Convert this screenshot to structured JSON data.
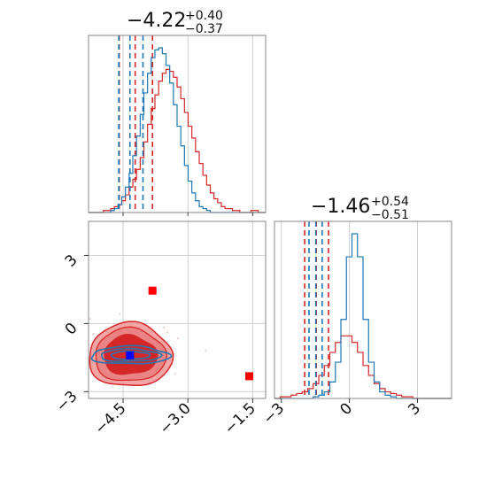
{
  "colors": {
    "red": "#d62728",
    "blue": "#1f77b4",
    "truth": "#ff0000",
    "truth_blue": "#0000ff"
  },
  "chart_data": {
    "type": "corner",
    "parameters": 2,
    "grid": true,
    "titles": [
      {
        "median": "−4.22",
        "plus": "+0.40",
        "minus": "−0.37"
      },
      {
        "median": "−1.46",
        "plus": "+0.54",
        "minus": "−0.51"
      }
    ],
    "param1": {
      "range": [
        -5.3,
        -1.2
      ],
      "ticks": [
        -4.5,
        -3.0,
        -1.5
      ],
      "tick_labels": [
        "−4.5",
        "−3.0",
        "−1.5"
      ]
    },
    "param2": {
      "range": [
        -3.3,
        4.5
      ],
      "ticks": [
        -3,
        0,
        3
      ],
      "tick_labels": [
        "−3",
        "0",
        "3"
      ]
    },
    "series": [
      {
        "color": "red",
        "param1_quantiles": [
          -4.59,
          -4.22,
          -3.82
        ],
        "param2_quantiles": [
          -1.97,
          -1.46,
          -0.92
        ],
        "param1_hist": [
          0,
          0,
          0,
          0,
          1,
          1,
          2,
          3,
          4,
          6,
          9,
          13,
          17,
          22,
          28,
          36,
          45,
          53,
          60,
          67,
          71,
          73,
          72,
          69,
          64,
          58,
          51,
          44,
          38,
          31,
          25,
          19,
          14,
          10,
          7,
          5,
          3,
          2,
          2,
          1,
          1,
          0,
          0,
          0,
          1,
          1,
          0,
          0
        ],
        "param2_hist": [
          0,
          1,
          1,
          2,
          3,
          4,
          6,
          9,
          14,
          20,
          28,
          34,
          38,
          38,
          34,
          28,
          20,
          14,
          9,
          6,
          4,
          3,
          2,
          1,
          1,
          0,
          0,
          0,
          0,
          0,
          0,
          0
        ]
      },
      {
        "color": "blue",
        "param1_quantiles": [
          -4.6,
          -4.34,
          -4.04
        ],
        "param2_quantiles": [
          -1.78,
          -1.48,
          -1.2
        ],
        "param1_hist": [
          0,
          0,
          0,
          0,
          0,
          0,
          1,
          2,
          4,
          8,
          13,
          20,
          29,
          39,
          50,
          61,
          71,
          79,
          83,
          84,
          81,
          75,
          66,
          55,
          44,
          34,
          24,
          16,
          10,
          6,
          3,
          2,
          1,
          0,
          0,
          0,
          0,
          0,
          0,
          0,
          0,
          0,
          0,
          0,
          0,
          0,
          0,
          0
        ],
        "param2_hist": [
          0,
          0,
          0,
          0,
          0,
          0,
          0,
          1,
          2,
          4,
          10,
          22,
          48,
          86,
          100,
          86,
          48,
          22,
          10,
          4,
          2,
          1,
          0,
          0,
          0,
          0,
          0,
          0,
          0,
          0,
          0,
          0
        ]
      }
    ],
    "truth_points": [
      {
        "color": "truth",
        "x": -3.82,
        "y": 1.45
      },
      {
        "color": "truth",
        "x": -1.58,
        "y": -2.32
      },
      {
        "color": "truth_blue",
        "x": -4.34,
        "y": -1.4
      }
    ],
    "contour_center": [
      -4.34,
      -1.4
    ]
  }
}
